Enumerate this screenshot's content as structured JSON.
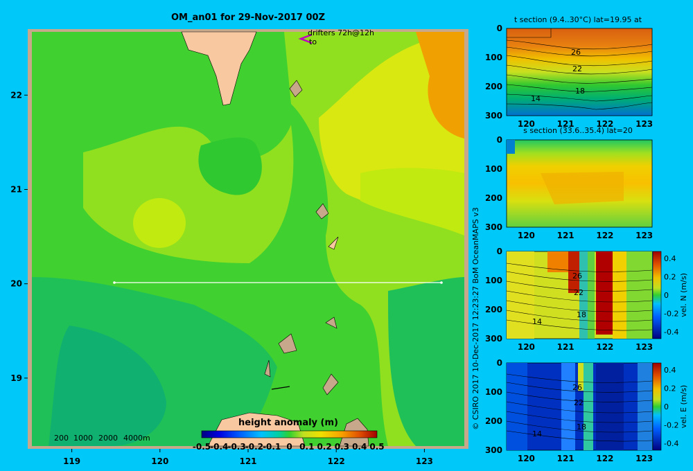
{
  "chart_data": [
    {
      "type": "heatmap",
      "title": "OM_an01 for 29-Nov-2017 00Z",
      "x_ticks": [
        119,
        120,
        121,
        122,
        123
      ],
      "y_ticks": [
        19,
        20,
        21,
        22
      ],
      "xlim": [
        118.5,
        123.5
      ],
      "ylim": [
        18.25,
        22.7
      ],
      "section_lat": 20,
      "section_lon_range": [
        119.5,
        123.2
      ],
      "drifter_label": "drifters 72h@12h",
      "drifter_to": "to",
      "depth_legend": [
        "200",
        "1000",
        "2000",
        "4000m"
      ],
      "colorbar": {
        "label": "height anomaly (m)",
        "ticks": [
          "-0.5",
          "-0.4",
          "-0.3",
          "-0.2",
          "-0.1",
          "0",
          "0.1",
          "0.2",
          "0.3",
          "0.4",
          "0.5"
        ]
      }
    },
    {
      "type": "heatmap",
      "title": "t section (9.4..30°C) lat=19.95 at",
      "x_ticks": [
        120,
        121,
        122,
        123
      ],
      "y_ticks": [
        0,
        100,
        200,
        300
      ],
      "contour_labels": [
        "26",
        "22",
        "18",
        "14"
      ]
    },
    {
      "type": "heatmap",
      "title": "s section (33.6..35.4) lat=20",
      "x_ticks": [
        120,
        121,
        122,
        123
      ],
      "y_ticks": [
        0,
        100,
        200,
        300
      ]
    },
    {
      "type": "heatmap",
      "title": "",
      "x_ticks": [
        120,
        121,
        122,
        123
      ],
      "y_ticks": [
        0,
        100,
        200,
        300
      ],
      "contour_labels": [
        "26",
        "22",
        "18",
        "14"
      ],
      "colorbar": {
        "label": "vel. N (m/s)",
        "ticks": [
          "0.4",
          "0.2",
          "0",
          "-0.2",
          "-0.4"
        ]
      }
    },
    {
      "type": "heatmap",
      "title": "",
      "x_ticks": [
        120,
        121,
        122,
        123
      ],
      "y_ticks": [
        0,
        100,
        200,
        300
      ],
      "contour_labels": [
        "26",
        "22",
        "18",
        "14"
      ],
      "colorbar": {
        "label": "vel. E (m/s)",
        "ticks": [
          "0.4",
          "0.2",
          "0",
          "-0.2",
          "-0.4"
        ]
      }
    }
  ],
  "credit": "© CSIRO 2017   10-Dec-2017 12:23:27 BoM OceanMAPS v3"
}
